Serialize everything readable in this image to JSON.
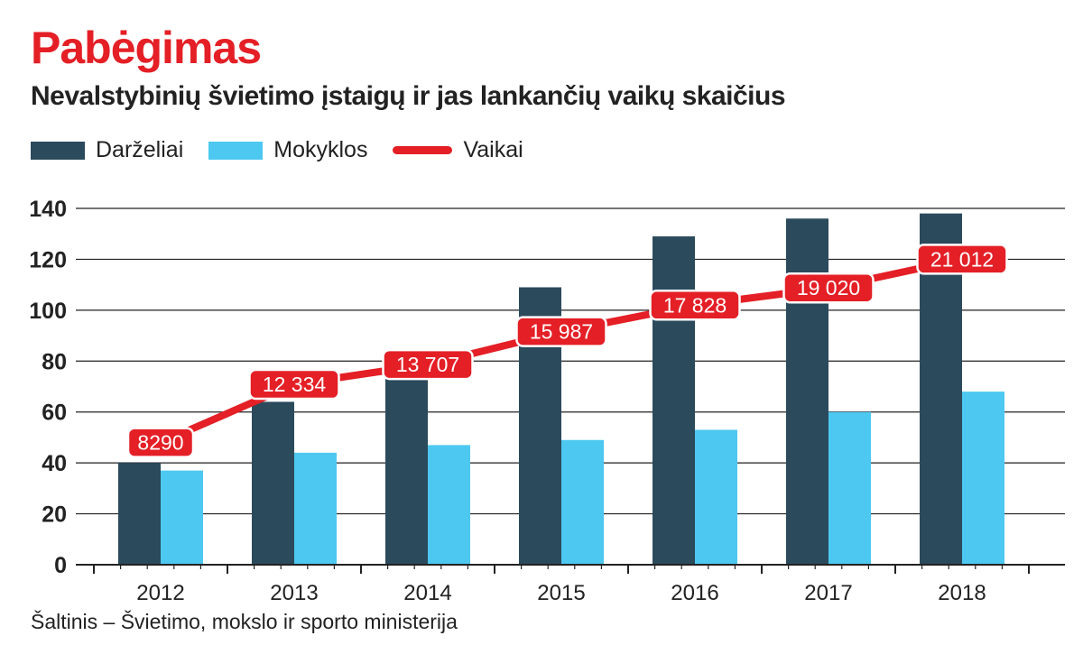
{
  "title": "Pabėgimas",
  "subtitle": "Nevalstybinių švietimo įstaigų ir jas lankančių vaikų skaičius",
  "source": "Šaltinis – Švietimo, mokslo ir sporto ministerija",
  "colors": {
    "darzeliai": "#2b4a5c",
    "mokyklos": "#4dc8f0",
    "vaikai": "#e41f26",
    "grid": "#222222"
  },
  "chart_data": {
    "type": "bar",
    "title": "Pabėgimas",
    "subtitle": "Nevalstybinių švietimo įstaigų ir jas lankančių vaikų skaičius",
    "categories": [
      "2012",
      "2013",
      "2014",
      "2015",
      "2016",
      "2017",
      "2018"
    ],
    "ylim": [
      0,
      140
    ],
    "yticks": [
      "0",
      "20",
      "40",
      "60",
      "80",
      "100",
      "120",
      "140"
    ],
    "grid": true,
    "legend_position": "top-left",
    "series": [
      {
        "name": "Darželiai",
        "type": "bar",
        "values": [
          40,
          64,
          80,
          109,
          129,
          136,
          138
        ]
      },
      {
        "name": "Mokyklos",
        "type": "bar",
        "values": [
          37,
          44,
          47,
          49,
          53,
          60,
          68
        ]
      },
      {
        "name": "Vaikai",
        "type": "line",
        "values": [
          8290,
          12334,
          13707,
          15987,
          17828,
          19020,
          21012
        ],
        "labels": [
          "8290",
          "12 334",
          "13 707",
          "15 987",
          "17 828",
          "19 020",
          "21 012"
        ]
      }
    ]
  }
}
